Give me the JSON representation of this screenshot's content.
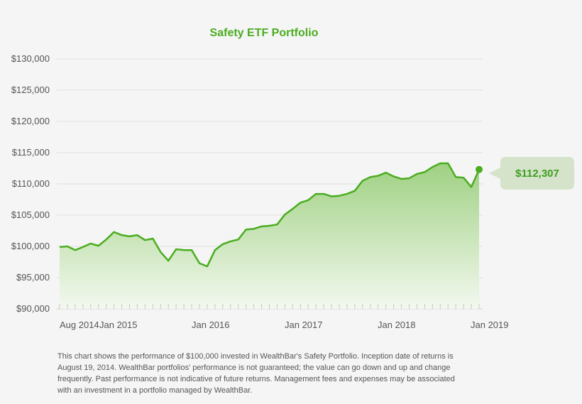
{
  "chart_data": {
    "type": "area",
    "title": "Safety ETF Portfolio",
    "xlabel": "",
    "ylabel": "",
    "ylim": [
      90000,
      130000
    ],
    "y_ticks": [
      "$90,000",
      "$95,000",
      "$100,000",
      "$105,000",
      "$110,000",
      "$115,000",
      "$120,000",
      "$125,000",
      "$130,000"
    ],
    "y_tick_values": [
      90000,
      95000,
      100000,
      105000,
      110000,
      115000,
      120000,
      125000,
      130000
    ],
    "x_tick_labels": [
      "Aug 2014",
      "Jan 2015",
      "Jan 2016",
      "Jan 2017",
      "Jan 2018",
      "Jan 2019"
    ],
    "grid": true,
    "values": [
      99900,
      100000,
      99400,
      99900,
      100450,
      100100,
      101100,
      102300,
      101800,
      101600,
      101800,
      101000,
      101250,
      99100,
      97700,
      99550,
      99400,
      99400,
      97300,
      96800,
      99400,
      100350,
      100800,
      101100,
      102700,
      102800,
      103200,
      103300,
      103500,
      105100,
      106000,
      107000,
      107400,
      108400,
      108400,
      108000,
      108100,
      108400,
      108900,
      110500,
      111100,
      111300,
      111800,
      111200,
      110800,
      110900,
      111600,
      111900,
      112700,
      113300,
      113300,
      111100,
      111000,
      109500,
      112307
    ],
    "final_value_label": "$112,307",
    "colors": {
      "line": "#4aad1f",
      "fill_top": "#9fd182",
      "fill_bottom": "#f3f8ef",
      "callout_bg": "#d4e3c9",
      "title": "#4aad1f"
    }
  },
  "footnote": "This chart shows the performance of $100,000 invested in WealthBar's Safety Portfolio. Inception date of returns is August 19, 2014. WealthBar portfolios' performance is not guaranteed; the value can go down and up and change frequently. Past performance is not indicative of future returns. Management fees and expenses may be associated with an investment in a portfolio managed by WealthBar."
}
